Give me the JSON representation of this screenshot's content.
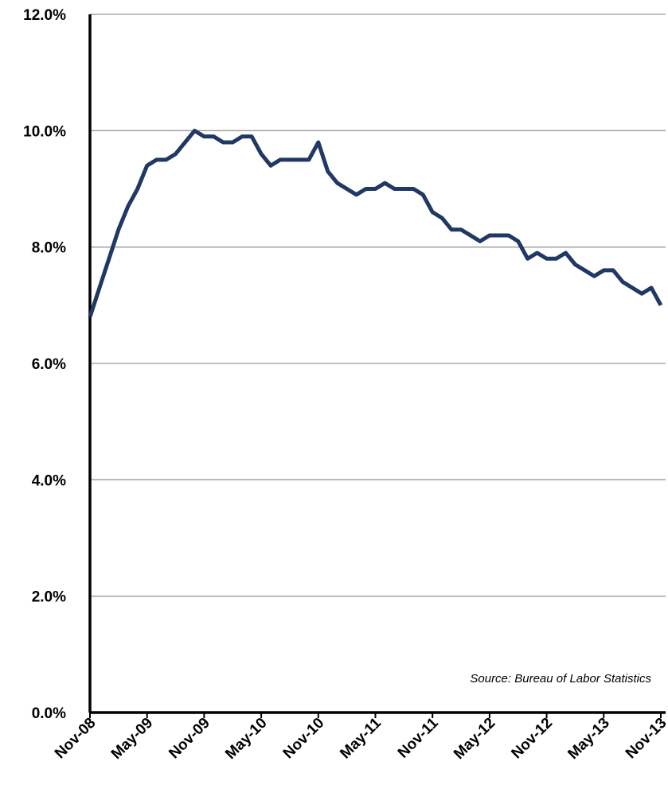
{
  "chart_data": {
    "type": "line",
    "categories": [
      "Nov-08",
      null,
      null,
      null,
      null,
      null,
      "May-09",
      null,
      null,
      null,
      null,
      null,
      "Nov-09",
      null,
      null,
      null,
      null,
      null,
      "May-10",
      null,
      null,
      null,
      null,
      null,
      "Nov-10",
      null,
      null,
      null,
      null,
      null,
      "May-11",
      null,
      null,
      null,
      null,
      null,
      "Nov-11",
      null,
      null,
      null,
      null,
      null,
      "May-12",
      null,
      null,
      null,
      null,
      null,
      "Nov-12",
      null,
      null,
      null,
      null,
      null,
      "May-13",
      null,
      null,
      null,
      null,
      null,
      "Nov-13"
    ],
    "series": [
      {
        "color": "#1f3864",
        "values": [
          6.8,
          7.3,
          7.8,
          8.3,
          8.7,
          9.0,
          9.4,
          9.5,
          9.5,
          9.6,
          9.8,
          10.0,
          9.9,
          9.9,
          9.8,
          9.8,
          9.9,
          9.9,
          9.6,
          9.4,
          9.5,
          9.5,
          9.5,
          9.5,
          9.8,
          9.3,
          9.1,
          9.0,
          8.9,
          9.0,
          9.0,
          9.1,
          9.0,
          9.0,
          9.0,
          8.9,
          8.6,
          8.5,
          8.3,
          8.3,
          8.2,
          8.1,
          8.2,
          8.2,
          8.2,
          8.1,
          7.8,
          7.9,
          7.8,
          7.8,
          7.9,
          7.7,
          7.6,
          7.5,
          7.6,
          7.6,
          7.4,
          7.3,
          7.2,
          7.3,
          7.0
        ]
      }
    ],
    "ylim": [
      0,
      12
    ],
    "yticks": [
      {
        "value": 0,
        "label": "0.0%"
      },
      {
        "value": 2,
        "label": "2.0%"
      },
      {
        "value": 4,
        "label": "4.0%"
      },
      {
        "value": 6,
        "label": "6.0%"
      },
      {
        "value": 8,
        "label": "8.0%"
      },
      {
        "value": 10,
        "label": "10.0%"
      },
      {
        "value": 12,
        "label": "12.0%"
      }
    ],
    "grid": true,
    "annotation": "Source: Bureau of Labor Statistics"
  }
}
